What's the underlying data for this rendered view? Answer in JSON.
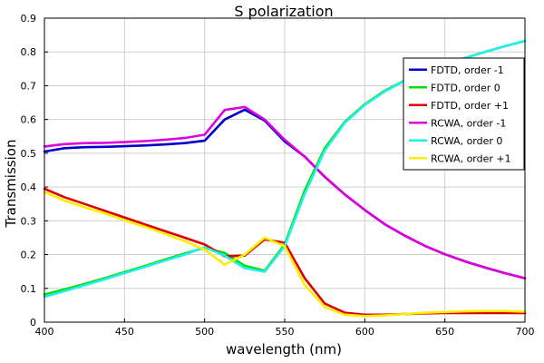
{
  "chart_data": {
    "type": "line",
    "title": "S polarization",
    "xlabel": "wavelength (nm)",
    "ylabel": "Transmission",
    "xlim": [
      400,
      700
    ],
    "ylim": [
      0,
      0.9
    ],
    "xticks": [
      400,
      450,
      500,
      550,
      600,
      650,
      700
    ],
    "yticks": [
      0,
      0.1,
      0.2,
      0.3,
      0.4,
      0.5,
      0.6,
      0.7,
      0.8,
      0.9
    ],
    "ytick_labels": [
      "0",
      "0.1",
      "0.2",
      "0.3",
      "0.4",
      "0.5",
      "0.6",
      "0.7",
      "0.8",
      "0.9"
    ],
    "grid": true,
    "legend_position": "top-right",
    "series": [
      {
        "name": "FDTD, order -1",
        "color": "#0000cc",
        "x": [
          400,
          412.5,
          425,
          437.5,
          450,
          462.5,
          475,
          487.5,
          500,
          512.5,
          525,
          537.5,
          550,
          562.5,
          575,
          587.5,
          600,
          612.5,
          625,
          637.5,
          650,
          662.5,
          675,
          687.5,
          700
        ],
        "y": [
          0.505,
          0.515,
          0.518,
          0.519,
          0.521,
          0.523,
          0.526,
          0.53,
          0.537,
          0.6,
          0.629,
          0.597,
          0.535,
          0.49,
          0.43,
          0.378,
          0.332,
          0.29,
          0.256,
          0.226,
          0.201,
          0.18,
          0.162,
          0.145,
          0.13
        ]
      },
      {
        "name": "FDTD, order 0",
        "color": "#00e000",
        "x": [
          400,
          412.5,
          425,
          437.5,
          450,
          462.5,
          475,
          487.5,
          500,
          512.5,
          525,
          537.5,
          550,
          562.5,
          575,
          587.5,
          600,
          612.5,
          625,
          637.5,
          650,
          662.5,
          675,
          687.5,
          700
        ],
        "y": [
          0.082,
          0.097,
          0.113,
          0.13,
          0.148,
          0.166,
          0.185,
          0.203,
          0.22,
          0.205,
          0.167,
          0.152,
          0.23,
          0.39,
          0.515,
          0.593,
          0.645,
          0.685,
          0.716,
          0.741,
          0.762,
          0.782,
          0.8,
          0.817,
          0.832
        ]
      },
      {
        "name": "FDTD, order +1",
        "color": "#dd0000",
        "x": [
          400,
          412.5,
          425,
          437.5,
          450,
          462.5,
          475,
          487.5,
          500,
          512.5,
          525,
          537.5,
          550,
          562.5,
          575,
          587.5,
          600,
          612.5,
          625,
          637.5,
          650,
          662.5,
          675,
          687.5,
          700
        ],
        "y": [
          0.395,
          0.37,
          0.35,
          0.33,
          0.31,
          0.29,
          0.27,
          0.25,
          0.23,
          0.195,
          0.197,
          0.245,
          0.235,
          0.13,
          0.055,
          0.028,
          0.022,
          0.022,
          0.024,
          0.026,
          0.027,
          0.027,
          0.027,
          0.027,
          0.027
        ]
      },
      {
        "name": "RCWA, order -1",
        "color": "#dd00dd",
        "x": [
          400,
          412.5,
          425,
          437.5,
          450,
          462.5,
          475,
          487.5,
          500,
          512.5,
          525,
          537.5,
          550,
          562.5,
          575,
          587.5,
          600,
          612.5,
          625,
          637.5,
          650,
          662.5,
          675,
          687.5,
          700
        ],
        "y": [
          0.52,
          0.527,
          0.53,
          0.531,
          0.533,
          0.536,
          0.54,
          0.545,
          0.555,
          0.628,
          0.637,
          0.6,
          0.54,
          0.49,
          0.43,
          0.378,
          0.332,
          0.29,
          0.256,
          0.226,
          0.201,
          0.18,
          0.162,
          0.145,
          0.13
        ]
      },
      {
        "name": "RCWA, order 0",
        "color": "#22eeee",
        "x": [
          400,
          412.5,
          425,
          437.5,
          450,
          462.5,
          475,
          487.5,
          500,
          512.5,
          525,
          537.5,
          550,
          562.5,
          575,
          587.5,
          600,
          612.5,
          625,
          637.5,
          650,
          662.5,
          675,
          687.5,
          700
        ],
        "y": [
          0.075,
          0.092,
          0.109,
          0.127,
          0.145,
          0.163,
          0.182,
          0.2,
          0.222,
          0.197,
          0.16,
          0.149,
          0.225,
          0.38,
          0.508,
          0.59,
          0.643,
          0.683,
          0.715,
          0.741,
          0.762,
          0.782,
          0.8,
          0.817,
          0.833
        ]
      },
      {
        "name": "RCWA, order +1",
        "color": "#ffee00",
        "x": [
          400,
          412.5,
          425,
          437.5,
          450,
          462.5,
          475,
          487.5,
          500,
          512.5,
          525,
          537.5,
          550,
          562.5,
          575,
          587.5,
          600,
          612.5,
          625,
          637.5,
          650,
          662.5,
          675,
          687.5,
          700
        ],
        "y": [
          0.385,
          0.36,
          0.34,
          0.322,
          0.302,
          0.283,
          0.262,
          0.24,
          0.215,
          0.17,
          0.2,
          0.25,
          0.225,
          0.11,
          0.045,
          0.022,
          0.018,
          0.02,
          0.024,
          0.028,
          0.03,
          0.032,
          0.033,
          0.033,
          0.031
        ]
      }
    ]
  }
}
